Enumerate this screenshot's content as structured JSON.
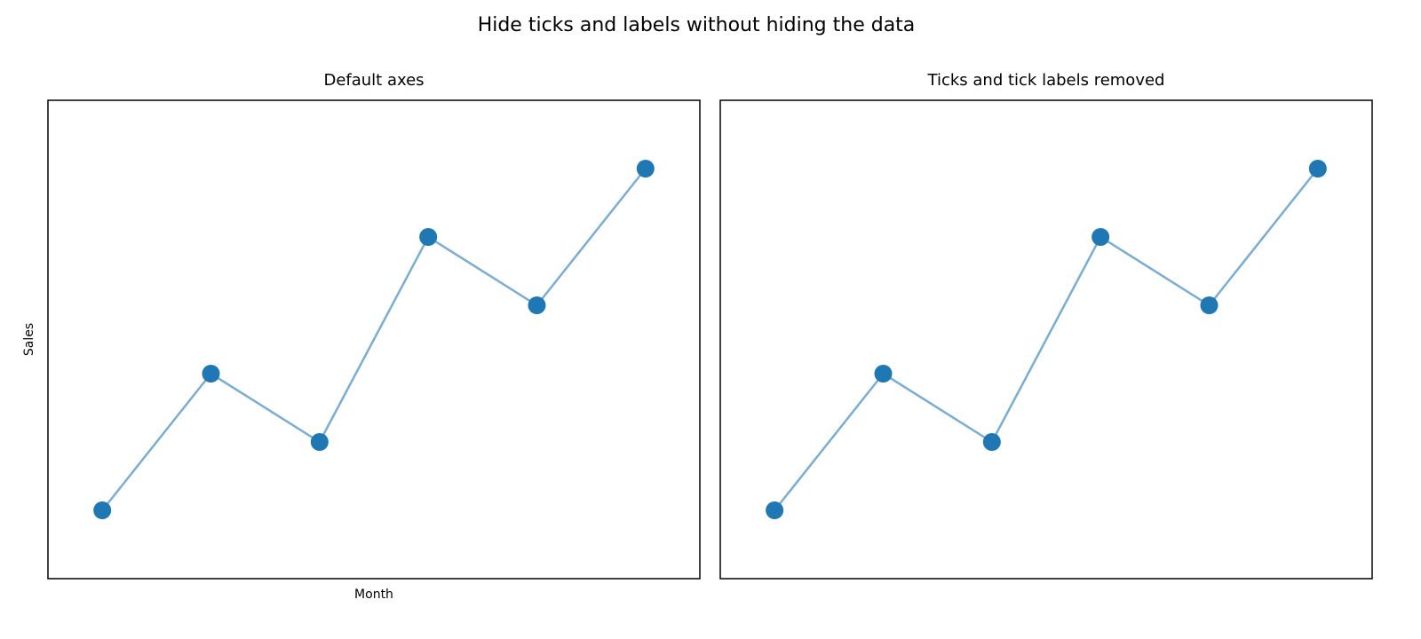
{
  "title": "Hide ticks and labels without hiding the data",
  "chart_data": [
    {
      "type": "line",
      "title": "Default axes",
      "xlabel": "Month",
      "ylabel": "Sales",
      "x": [
        0,
        1,
        2,
        3,
        4,
        5
      ],
      "series": [
        {
          "color": "#1f77b4",
          "values": [
            1,
            3,
            2,
            5,
            4,
            6
          ]
        }
      ],
      "xlim": [
        -0.5,
        5.5
      ],
      "ylim": [
        0,
        7
      ]
    },
    {
      "type": "line",
      "title": "Ticks and tick labels removed",
      "x": [
        0,
        1,
        2,
        3,
        4,
        5
      ],
      "series": [
        {
          "color": "#1f77b4",
          "values": [
            1,
            3,
            2,
            5,
            4,
            6
          ]
        }
      ],
      "xlim": [
        -0.5,
        5.5
      ],
      "ylim": [
        0,
        7
      ]
    }
  ]
}
